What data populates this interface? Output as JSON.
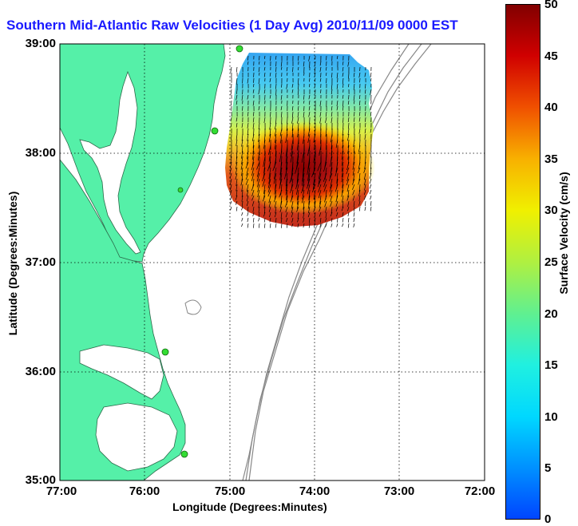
{
  "title": "Southern Mid-Atlantic Raw Velocities (1 Day Avg) 2010/11/09 0000 EST",
  "axes": {
    "xlabel": "Longitude (Degrees:Minutes)",
    "ylabel": "Latitude (Degrees:Minutes)",
    "lon_ticks": [
      "77:00",
      "76:00",
      "75:00",
      "74:00",
      "73:00",
      "72:00"
    ],
    "lat_ticks": [
      "39:00",
      "38:00",
      "37:00",
      "36:00",
      "35:00"
    ]
  },
  "colorbar": {
    "label": "Surface Velocity (cm/s)",
    "ticks": [
      "50",
      "45",
      "40",
      "35",
      "30",
      "25",
      "20",
      "15",
      "10",
      "5",
      "0"
    ],
    "range": [
      0,
      50
    ]
  },
  "colors": {
    "land": "#55f0a8",
    "water": "#ffffff",
    "title": "#1a1aff",
    "station": "#33dd33",
    "bathymetry": "#888888"
  },
  "stations": [
    "station-delaware",
    "station-assateague",
    "station-virginia",
    "station-duck",
    "station-hatteras"
  ]
}
